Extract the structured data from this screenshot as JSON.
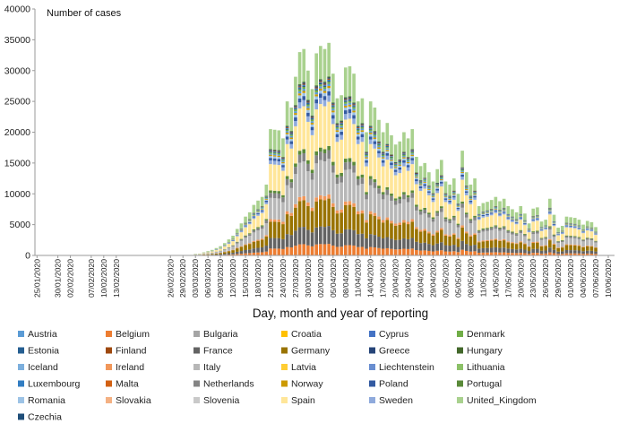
{
  "chart_data": {
    "type": "bar",
    "stacked": true,
    "ylabel": "Number of cases",
    "xlabel": "Day, month and year of reporting",
    "ylim": [
      0,
      40000
    ],
    "y_ticks": [
      0,
      5000,
      10000,
      15000,
      20000,
      25000,
      30000,
      35000,
      40000
    ],
    "x_start": "2020-01-25",
    "x_end": "2020-06-11",
    "x_tick_labels": [
      "25/01/2020",
      "30/01/2020",
      "02/02/2020",
      "07/02/2020",
      "10/02/2020",
      "13/02/2020",
      "26/02/2020",
      "29/02/2020",
      "03/03/2020",
      "06/03/2020",
      "09/03/2020",
      "12/03/2020",
      "15/03/2020",
      "18/03/2020",
      "21/03/2020",
      "24/03/2020",
      "27/03/2020",
      "30/03/2020",
      "02/04/2020",
      "05/04/2020",
      "08/04/2020",
      "11/04/2020",
      "14/04/2020",
      "17/04/2020",
      "20/04/2020",
      "23/04/2020",
      "26/04/2020",
      "29/04/2020",
      "02/05/2020",
      "05/05/2020",
      "08/05/2020",
      "11/05/2020",
      "14/05/2020",
      "17/05/2020",
      "20/05/2020",
      "23/05/2020",
      "26/05/2020",
      "29/05/2020",
      "01/06/2020",
      "04/06/2020",
      "07/06/2020",
      "10/06/2020"
    ],
    "daily_totals": [
      0,
      0,
      0,
      0,
      0,
      0,
      0,
      0,
      0,
      0,
      0,
      0,
      0,
      0,
      0,
      0,
      0,
      0,
      0,
      0,
      0,
      0,
      0,
      0,
      0,
      0,
      0,
      0,
      0,
      0,
      0,
      0,
      0,
      0,
      50,
      60,
      60,
      80,
      250,
      300,
      500,
      700,
      900,
      1200,
      1500,
      2000,
      2600,
      3200,
      4300,
      5200,
      6300,
      7000,
      8200,
      8900,
      9500,
      11500,
      20500,
      20400,
      20300,
      19000,
      25000,
      24000,
      29000,
      33000,
      33500,
      30000,
      27000,
      32800,
      34000,
      33500,
      34500,
      29500,
      25500,
      26000,
      30500,
      30700,
      29500,
      25000,
      25500,
      20000,
      25000,
      24000,
      22000,
      20000,
      21500,
      19500,
      18000,
      18500,
      20000,
      19000,
      20500,
      16000,
      14500,
      15000,
      13500,
      12000,
      14000,
      15500,
      12000,
      11500,
      12500,
      10000,
      17000,
      13500,
      11500,
      12500,
      8000,
      8500,
      8700,
      9000,
      9500,
      8800,
      9200,
      8000,
      7500,
      7000,
      8000,
      6800,
      5200,
      7600,
      7800,
      5500,
      5800,
      9200,
      6600,
      4500,
      4800,
      6300,
      6200,
      6100,
      5800,
      5000,
      5600,
      5400,
      4600
    ]
  },
  "legend": {
    "entries": [
      {
        "name": "Austria",
        "color": "#5b9bd5"
      },
      {
        "name": "Belgium",
        "color": "#ed7d31"
      },
      {
        "name": "Bulgaria",
        "color": "#a5a5a5"
      },
      {
        "name": "Croatia",
        "color": "#ffc000"
      },
      {
        "name": "Cyprus",
        "color": "#4472c4"
      },
      {
        "name": "Denmark",
        "color": "#70ad47"
      },
      {
        "name": "Estonia",
        "color": "#255e91"
      },
      {
        "name": "Finland",
        "color": "#9e480e"
      },
      {
        "name": "France",
        "color": "#636363"
      },
      {
        "name": "Germany",
        "color": "#997300"
      },
      {
        "name": "Greece",
        "color": "#264478"
      },
      {
        "name": "Hungary",
        "color": "#43682b"
      },
      {
        "name": "Iceland",
        "color": "#7cafdd"
      },
      {
        "name": "Ireland",
        "color": "#f1975a"
      },
      {
        "name": "Italy",
        "color": "#b7b7b7"
      },
      {
        "name": "Latvia",
        "color": "#ffcd33"
      },
      {
        "name": "Liechtenstein",
        "color": "#698ed0"
      },
      {
        "name": "Lithuania",
        "color": "#8cc168"
      },
      {
        "name": "Luxembourg",
        "color": "#327dc2"
      },
      {
        "name": "Malta",
        "color": "#d26012"
      },
      {
        "name": "Netherlands",
        "color": "#848484"
      },
      {
        "name": "Norway",
        "color": "#cc9a00"
      },
      {
        "name": "Poland",
        "color": "#335aa1"
      },
      {
        "name": "Portugal",
        "color": "#5a8a39"
      },
      {
        "name": "Romania",
        "color": "#9dc3e6"
      },
      {
        "name": "Slovakia",
        "color": "#f4b183"
      },
      {
        "name": "Slovenia",
        "color": "#c9c9c9"
      },
      {
        "name": "Spain",
        "color": "#ffe699"
      },
      {
        "name": "Sweden",
        "color": "#8faadc"
      },
      {
        "name": "United_Kingdom",
        "color": "#a9d18e"
      },
      {
        "name": "Czechia",
        "color": "#1f4e79"
      }
    ]
  }
}
